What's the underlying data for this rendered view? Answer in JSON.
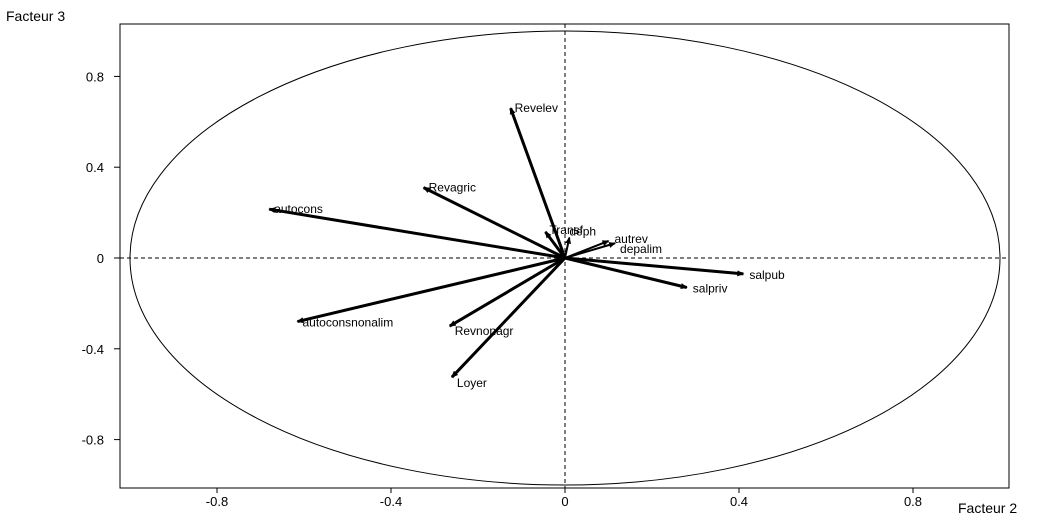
{
  "chart_data": {
    "type": "scatter",
    "title": "",
    "xlabel": "Facteur 2",
    "ylabel": "Facteur 3",
    "xlim": [
      -1.02,
      1.02
    ],
    "ylim": [
      -1.02,
      1.02
    ],
    "x_ticks": [
      -0.8,
      -0.4,
      0,
      0.4,
      0.8
    ],
    "x_tick_labels": [
      "-0.8",
      "-0.4",
      "0",
      "0.4",
      "0.8"
    ],
    "y_ticks": [
      0.8,
      0.4,
      0,
      -0.4,
      -0.8
    ],
    "y_tick_labels": [
      "0.8",
      "0.4",
      "0",
      "-0.4",
      "-0.8"
    ],
    "unit_circle": true,
    "grid": false,
    "reference_lines": "dashed lines at x=0 and y=0",
    "colors": {
      "vectors": "#000000",
      "axes": "#000000",
      "background": "#ffffff"
    },
    "vectors": [
      {
        "label": "Revelev",
        "x": -0.125,
        "y": 0.66
      },
      {
        "label": "Revagric",
        "x": -0.325,
        "y": 0.31
      },
      {
        "label": "autocons",
        "x": -0.68,
        "y": 0.215
      },
      {
        "label": "Transf",
        "x": -0.045,
        "y": 0.115
      },
      {
        "label": "deph",
        "x": 0.01,
        "y": 0.09
      },
      {
        "label": "autrev",
        "x": 0.1,
        "y": 0.075
      },
      {
        "label": "depalim",
        "x": 0.115,
        "y": 0.065
      },
      {
        "label": "salpub",
        "x": 0.41,
        "y": -0.07
      },
      {
        "label": "salpriv",
        "x": 0.28,
        "y": -0.13
      },
      {
        "label": "autoconsnonalim",
        "x": -0.615,
        "y": -0.28
      },
      {
        "label": "Revnonagr",
        "x": -0.265,
        "y": -0.3
      },
      {
        "label": "Loyer",
        "x": -0.26,
        "y": -0.525
      }
    ]
  }
}
